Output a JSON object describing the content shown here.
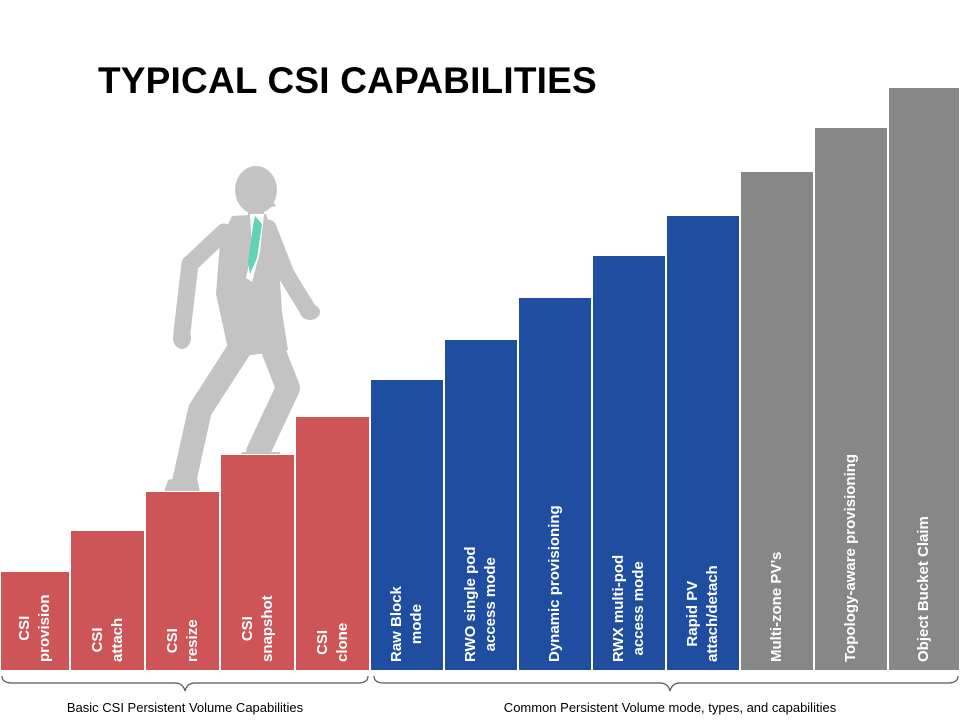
{
  "title": "TYPICAL CSI CAPABILITIES",
  "steps": [
    {
      "label": "CSI\nprovision",
      "group": "basic"
    },
    {
      "label": "CSI\nattach",
      "group": "basic"
    },
    {
      "label": "CSI\nresize",
      "group": "basic"
    },
    {
      "label": "CSI\nsnapshot",
      "group": "basic"
    },
    {
      "label": "CSI\nclone",
      "group": "basic"
    },
    {
      "label": "Raw Block\nmode",
      "group": "common"
    },
    {
      "label": "RWO single pod\naccess mode",
      "group": "common"
    },
    {
      "label": "Dynamic provisioning",
      "group": "common"
    },
    {
      "label": "RWX multi-pod\naccess mode",
      "group": "common"
    },
    {
      "label": "Rapid PV\nattach/detach",
      "group": "common"
    },
    {
      "label": "Multi-zone PV’s",
      "group": "future"
    },
    {
      "label": "Topology-aware provisioning",
      "group": "future"
    },
    {
      "label": "Object Bucket Claim",
      "group": "future"
    }
  ],
  "groups": {
    "basic": "Basic CSI Persistent Volume Capabilities",
    "common": "Common Persistent Volume mode, types, and capabilities"
  },
  "colors": {
    "basic": "#cd5558",
    "common": "#1f4da0",
    "future": "#878787",
    "figure": "#c3c3c3",
    "tie": "#5fd4b5"
  },
  "icons": {
    "figure": "walking-businessman-icon"
  }
}
